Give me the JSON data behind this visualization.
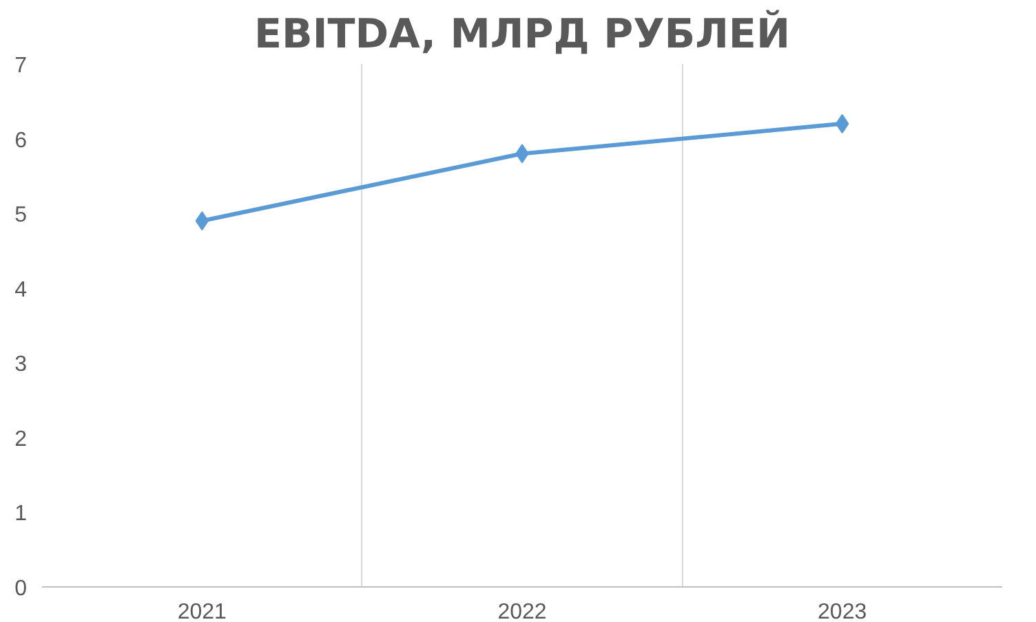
{
  "chart_data": {
    "type": "line",
    "title": "EBITDA, МЛРД РУБЛЕЙ",
    "categories": [
      "2021",
      "2022",
      "2023"
    ],
    "series": [
      {
        "color": "#5b9bd5",
        "values": [
          4.9,
          5.8,
          6.2
        ]
      }
    ],
    "ylim": [
      0,
      7
    ],
    "yticks": [
      0,
      1,
      2,
      3,
      4,
      5,
      6,
      7
    ],
    "grid": "x",
    "marker": "diamond",
    "line_style": "solid"
  }
}
